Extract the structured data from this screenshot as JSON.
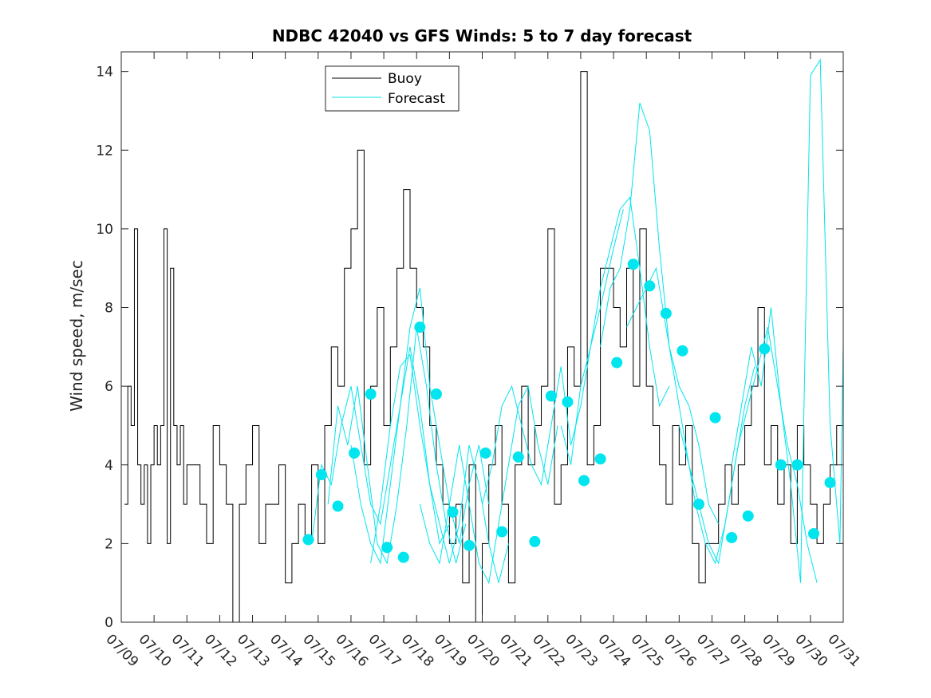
{
  "chart_data": {
    "type": "line",
    "title": "NDBC 42040 vs GFS Winds: 5 to 7 day forecast",
    "xlabel": "",
    "ylabel": "Wind speed, m/sec",
    "ylim": [
      0,
      14.5
    ],
    "xlim": [
      "07/09",
      "07/31"
    ],
    "yticks": [
      "0",
      "2",
      "4",
      "6",
      "8",
      "10",
      "12",
      "14"
    ],
    "xticks": [
      "07/09",
      "07/10",
      "07/11",
      "07/12",
      "07/13",
      "07/14",
      "07/15",
      "07/16",
      "07/17",
      "07/18",
      "07/19",
      "07/20",
      "07/21",
      "07/22",
      "07/23",
      "07/24",
      "07/25",
      "07/26",
      "07/27",
      "07/28",
      "07/29",
      "07/30",
      "07/31"
    ],
    "grid": false,
    "legend": {
      "placement": "top-left",
      "entries": [
        {
          "label": "Buoy",
          "color": "#000000"
        },
        {
          "label": "Forecast",
          "color": "#00e5ee"
        }
      ]
    },
    "colors": {
      "buoy": "#000000",
      "forecast": "#00e5ee",
      "axes": "#262626"
    },
    "buoy_series": {
      "name": "Buoy",
      "x_units": "days since 07/09",
      "x": [
        0.1,
        0.2,
        0.3,
        0.4,
        0.5,
        0.6,
        0.7,
        0.8,
        0.9,
        1.0,
        1.1,
        1.2,
        1.3,
        1.4,
        1.5,
        1.6,
        1.7,
        1.8,
        1.9,
        2.0,
        2.2,
        2.4,
        2.6,
        2.8,
        3.0,
        3.2,
        3.4,
        3.6,
        3.8,
        4.0,
        4.2,
        4.4,
        4.6,
        4.8,
        5.0,
        5.2,
        5.4,
        5.6,
        5.8,
        6.0,
        6.2,
        6.4,
        6.6,
        6.8,
        7.0,
        7.2,
        7.4,
        7.6,
        7.8,
        8.0,
        8.2,
        8.4,
        8.6,
        8.8,
        9.0,
        9.2,
        9.4,
        9.6,
        9.8,
        10.0,
        10.2,
        10.4,
        10.6,
        10.8,
        11.0,
        11.2,
        11.4,
        11.6,
        11.8,
        12.0,
        12.2,
        12.4,
        12.6,
        12.8,
        13.0,
        13.2,
        13.4,
        13.6,
        13.8,
        14.0,
        14.2,
        14.4,
        14.6,
        14.8,
        15.0,
        15.2,
        15.4,
        15.6,
        15.8,
        16.0,
        16.2,
        16.4,
        16.6,
        16.8,
        17.0,
        17.2,
        17.4,
        17.6,
        17.8,
        18.0,
        18.2,
        18.4,
        18.6,
        18.8,
        19.0,
        19.2,
        19.4,
        19.6,
        19.8,
        20.0,
        20.2,
        20.4,
        20.6,
        20.8,
        21.0,
        21.2,
        21.4,
        21.6,
        21.8,
        22.0
      ],
      "values": [
        3,
        6,
        5,
        10,
        4,
        3,
        4,
        2,
        4,
        5,
        4,
        5,
        10,
        2,
        9,
        5,
        4,
        5,
        3,
        4,
        4,
        3,
        2,
        5,
        4,
        3,
        0,
        3,
        4,
        5,
        2,
        3,
        3,
        4,
        1,
        2,
        3,
        2,
        4,
        2,
        5,
        7,
        6,
        9,
        10,
        12,
        4,
        6,
        8,
        5,
        7,
        9,
        11,
        9,
        8,
        7,
        5,
        4,
        3,
        2,
        3,
        1,
        4,
        0,
        2,
        4,
        5,
        3,
        1,
        4,
        6,
        4,
        5,
        6,
        10,
        3,
        4,
        7,
        6,
        14,
        4,
        5,
        9,
        9,
        8,
        7,
        9,
        6,
        10,
        6,
        5,
        4,
        3,
        5,
        4,
        5,
        2,
        1,
        2,
        2,
        3,
        4,
        3,
        4,
        5,
        6,
        8,
        4,
        5,
        3,
        4,
        2,
        5,
        4,
        3,
        2,
        3,
        4,
        5,
        3
      ]
    },
    "forecast_series": {
      "name": "Forecast",
      "x_units": "days since 07/09",
      "runs": [
        {
          "x": [
            5.8,
            6.1,
            6.4,
            6.7,
            7.0,
            7.3,
            7.6,
            7.9,
            8.2,
            8.5,
            8.8,
            9.1,
            9.4,
            9.7,
            10.0
          ],
          "values": [
            2.0,
            4.0,
            3.5,
            5.0,
            6.0,
            4.5,
            3.0,
            2.5,
            4.0,
            5.5,
            7.0,
            5.5,
            3.5,
            2.0,
            2.5
          ]
        },
        {
          "x": [
            6.3,
            6.6,
            6.9,
            7.2,
            7.5,
            7.8,
            8.1,
            8.4,
            8.7,
            9.0,
            9.3,
            9.6,
            9.9,
            10.2,
            10.5
          ],
          "values": [
            3.0,
            5.5,
            4.5,
            6.0,
            4.0,
            2.0,
            1.5,
            3.0,
            5.0,
            7.5,
            6.0,
            4.0,
            2.5,
            1.5,
            2.5
          ]
        },
        {
          "x": [
            7.0,
            7.3,
            7.6,
            7.9,
            8.2,
            8.5,
            8.8,
            9.1,
            9.4,
            9.7,
            10.0,
            10.3,
            10.6,
            10.9,
            11.2
          ],
          "values": [
            4.5,
            3.0,
            2.0,
            1.5,
            3.5,
            5.5,
            7.5,
            8.5,
            6.0,
            4.5,
            3.0,
            2.0,
            3.5,
            4.5,
            3.0
          ]
        },
        {
          "x": [
            7.6,
            7.9,
            8.2,
            8.5,
            8.8,
            9.1,
            9.4,
            9.7,
            10.0,
            10.3,
            10.6,
            10.9,
            11.2,
            11.5,
            11.8
          ],
          "values": [
            1.5,
            3.0,
            5.0,
            6.5,
            6.8,
            5.0,
            3.5,
            2.5,
            1.5,
            2.5,
            4.5,
            3.5,
            2.0,
            1.0,
            2.0
          ]
        },
        {
          "x": [
            9.1,
            9.4,
            9.7,
            10.0,
            10.3,
            10.6,
            10.9,
            11.2,
            11.5,
            11.8,
            12.1,
            12.4,
            12.7,
            13.0,
            13.3
          ],
          "values": [
            3.0,
            2.0,
            1.5,
            3.0,
            4.5,
            3.0,
            1.5,
            1.0,
            2.5,
            4.0,
            5.5,
            6.0,
            4.5,
            3.5,
            5.0
          ]
        },
        {
          "x": [
            11.0,
            11.3,
            11.6,
            11.9,
            12.2,
            12.5,
            12.8,
            13.1,
            13.4,
            13.7,
            14.0,
            14.3,
            14.6,
            15.0,
            15.3
          ],
          "values": [
            3.0,
            4.0,
            5.5,
            6.0,
            5.0,
            4.0,
            3.5,
            5.0,
            6.5,
            4.5,
            5.5,
            7.0,
            8.0,
            9.5,
            10.5
          ]
        },
        {
          "x": [
            13.4,
            13.7,
            14.0,
            14.3,
            14.6,
            14.9,
            15.2,
            15.5,
            15.8,
            16.1,
            16.4,
            16.7
          ],
          "values": [
            5.0,
            4.0,
            6.0,
            7.0,
            8.5,
            9.5,
            10.5,
            10.8,
            9.0,
            7.0,
            5.5,
            6.0
          ]
        },
        {
          "x": [
            14.6,
            14.9,
            15.2,
            15.5,
            15.8,
            16.1,
            16.4,
            16.7,
            17.0,
            17.3,
            17.6,
            17.9,
            18.2
          ],
          "values": [
            7.0,
            8.5,
            9.0,
            10.5,
            13.2,
            12.5,
            9.5,
            7.0,
            6.0,
            5.5,
            4.5,
            3.0,
            2.5
          ]
        },
        {
          "x": [
            15.4,
            15.7,
            16.0,
            16.3,
            16.6,
            16.9,
            17.2,
            17.5,
            17.8,
            18.1,
            18.4,
            18.7,
            19.0,
            19.3
          ],
          "values": [
            7.5,
            8.0,
            8.5,
            9.0,
            7.5,
            6.0,
            4.5,
            3.0,
            2.0,
            1.5,
            2.5,
            4.0,
            5.5,
            6.5
          ]
        },
        {
          "x": [
            17.0,
            17.3,
            17.6,
            17.9,
            18.2,
            18.5,
            18.8,
            19.1,
            19.4,
            19.7,
            20.0,
            20.3,
            20.6,
            20.9,
            21.2
          ],
          "values": [
            5.0,
            4.0,
            3.0,
            2.0,
            1.5,
            3.0,
            4.5,
            5.5,
            6.5,
            7.5,
            6.0,
            4.5,
            3.5,
            2.0,
            1.0
          ]
        },
        {
          "x": [
            18.6,
            18.9,
            19.2,
            19.5,
            19.8,
            20.1,
            20.4,
            20.7,
            21.0,
            21.3,
            21.6,
            21.9,
            22.0
          ],
          "values": [
            4.0,
            5.5,
            7.0,
            6.0,
            8.0,
            5.5,
            3.5,
            1.0,
            13.9,
            14.3,
            5.0,
            2.0,
            7.1
          ]
        }
      ],
      "markers_x": [
        5.7,
        6.1,
        6.6,
        7.1,
        7.6,
        8.1,
        8.6,
        9.1,
        9.6,
        10.1,
        10.6,
        11.1,
        11.6,
        12.1,
        12.6,
        13.1,
        13.6,
        14.1,
        14.6,
        15.1,
        15.6,
        16.1,
        16.6,
        17.1,
        17.6,
        18.1,
        18.6,
        19.1,
        19.6,
        20.1,
        20.6,
        21.1,
        21.6
      ],
      "markers_y": [
        2.1,
        3.75,
        2.95,
        4.3,
        5.8,
        1.9,
        1.65,
        7.5,
        5.8,
        2.8,
        1.95,
        4.3,
        2.3,
        4.2,
        2.05,
        5.75,
        5.6,
        3.6,
        4.15,
        6.6,
        9.1,
        8.55,
        7.85,
        6.9,
        3.0,
        5.2,
        2.15,
        2.7,
        6.95,
        4.0,
        4.0,
        2.25,
        3.55
      ]
    }
  }
}
